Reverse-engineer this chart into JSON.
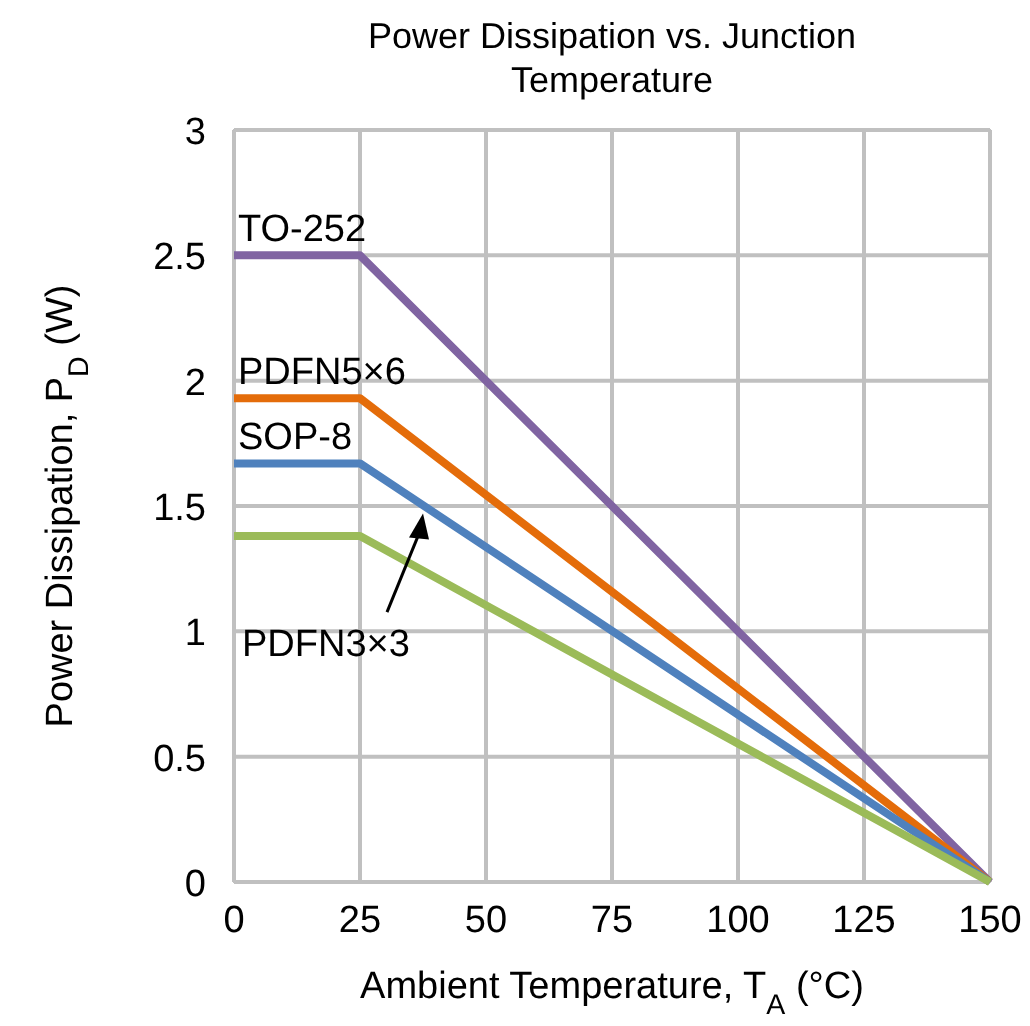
{
  "chart_data": {
    "type": "line",
    "title": "Power Dissipation vs. Junction Temperature",
    "xlabel": "Ambient Temperature, T$_{A}$ (°C)",
    "ylabel": "Power Dissipation, P$_{D}$ (W)",
    "x": [
      0,
      25,
      150
    ],
    "xlim": [
      0,
      150
    ],
    "ylim": [
      0,
      3
    ],
    "xticks": [
      0,
      25,
      50,
      75,
      100,
      125,
      150
    ],
    "yticks": [
      0,
      0.5,
      1,
      1.5,
      2,
      2.5,
      3
    ],
    "grid": true,
    "line_style": "solid",
    "marker": "none",
    "series": [
      {
        "name": "TO-252",
        "color": "#8064a2",
        "values": [
          2.5,
          2.5,
          0
        ]
      },
      {
        "name": "PDFN5×6",
        "color": "#e46c0a",
        "values": [
          1.93,
          1.93,
          0
        ]
      },
      {
        "name": "SOP-8",
        "color": "#4f81bd",
        "values": [
          1.67,
          1.67,
          0
        ]
      },
      {
        "name": "PDFN3×3",
        "color": "#9bbb59",
        "values": [
          1.38,
          1.38,
          0
        ]
      }
    ]
  }
}
